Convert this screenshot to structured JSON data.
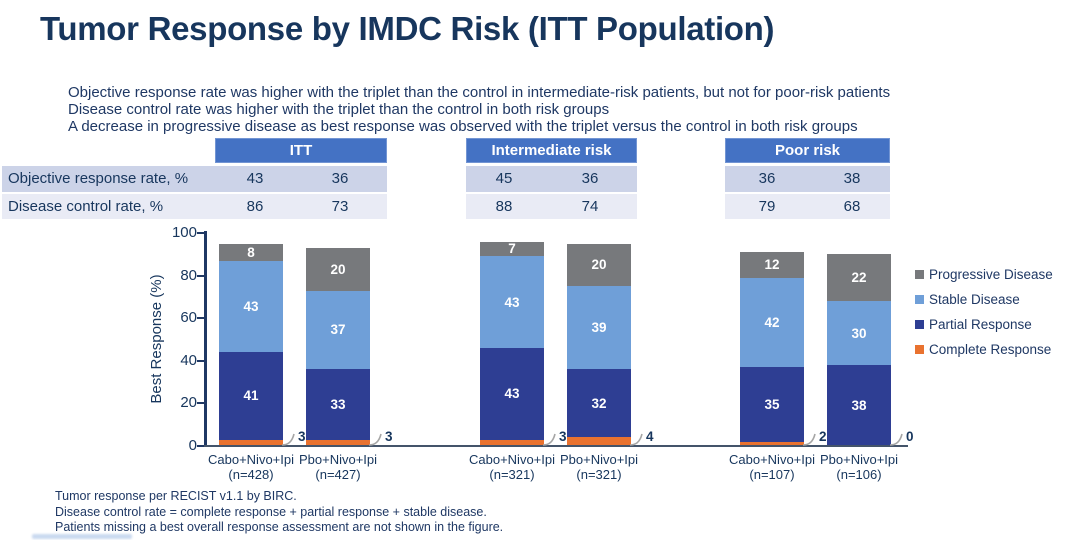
{
  "slide": {
    "title": "Tumor Response by IMDC Risk (ITT Population)",
    "bullets": [
      "Objective response rate was higher with the triplet than the control in intermediate-risk patients, but not for poor-risk patients",
      "Disease control rate was higher with the triplet than the control in both risk groups",
      "A decrease in progressive disease as best response was observed with the triplet versus the control in both risk groups"
    ],
    "footnotes": [
      "Tumor response per RECIST v1.1 by BIRC.",
      "Disease control rate = complete response + partial response + stable disease.",
      "Patients missing a best overall response assessment are not shown in the figure."
    ]
  },
  "colors": {
    "banner_blue": "#4472C4",
    "row_band_dark": "#CCD3E8",
    "row_band_light": "#E9EBF5",
    "navy_text": "#17365D",
    "axis_navy": "#1F3864"
  },
  "table": {
    "row_labels": [
      "Objective response rate, %",
      "Disease control rate, %"
    ],
    "groups": [
      {
        "header": "ITT",
        "objective_response_rate": [
          "43",
          "36"
        ],
        "disease_control_rate": [
          "86",
          "73"
        ]
      },
      {
        "header": "Intermediate risk",
        "objective_response_rate": [
          "45",
          "36"
        ],
        "disease_control_rate": [
          "88",
          "74"
        ]
      },
      {
        "header": "Poor risk",
        "objective_response_rate": [
          "36",
          "38"
        ],
        "disease_control_rate": [
          "79",
          "68"
        ]
      }
    ]
  },
  "chart_data": {
    "type": "bar",
    "stacked": true,
    "ylabel": "Best Response (%)",
    "ylim": [
      0,
      100
    ],
    "yticks": [
      0,
      20,
      40,
      60,
      80,
      100
    ],
    "grid": false,
    "legend_position": "right",
    "segments_bottom_to_top": [
      "Complete Response",
      "Partial Response",
      "Stable Disease",
      "Progressive Disease"
    ],
    "callout_segment": "Complete Response",
    "colors": {
      "Complete Response": "#E9722F",
      "Partial Response": "#2E3E93",
      "Stable Disease": "#6F9FD8",
      "Progressive Disease": "#77797C"
    },
    "legend": [
      {
        "label": "Progressive Disease",
        "color": "#77797C"
      },
      {
        "label": "Stable Disease",
        "color": "#6F9FD8"
      },
      {
        "label": "Partial Response",
        "color": "#2E3E93"
      },
      {
        "label": "Complete Response",
        "color": "#E9722F"
      }
    ],
    "groups": [
      {
        "name": "ITT",
        "bars": [
          {
            "label": "Cabo+Nivo+Ipi",
            "n": "(n=428)",
            "values": {
              "Complete Response": 3,
              "Partial Response": 41,
              "Stable Disease": 43,
              "Progressive Disease": 8
            }
          },
          {
            "label": "Pbo+Nivo+Ipi",
            "n": "(n=427)",
            "values": {
              "Complete Response": 3,
              "Partial Response": 33,
              "Stable Disease": 37,
              "Progressive Disease": 20
            }
          }
        ]
      },
      {
        "name": "Intermediate risk",
        "bars": [
          {
            "label": "Cabo+Nivo+Ipi",
            "n": "(n=321)",
            "values": {
              "Complete Response": 3,
              "Partial Response": 43,
              "Stable Disease": 43,
              "Progressive Disease": 7
            }
          },
          {
            "label": "Pbo+Nivo+Ipi",
            "n": "(n=321)",
            "values": {
              "Complete Response": 4,
              "Partial Response": 32,
              "Stable Disease": 39,
              "Progressive Disease": 20
            }
          }
        ]
      },
      {
        "name": "Poor risk",
        "bars": [
          {
            "label": "Cabo+Nivo+Ipi",
            "n": "(n=107)",
            "values": {
              "Complete Response": 2,
              "Partial Response": 35,
              "Stable Disease": 42,
              "Progressive Disease": 12
            }
          },
          {
            "label": "Pbo+Nivo+Ipi",
            "n": "(n=106)",
            "values": {
              "Complete Response": 0,
              "Partial Response": 38,
              "Stable Disease": 30,
              "Progressive Disease": 22
            }
          }
        ]
      }
    ]
  }
}
